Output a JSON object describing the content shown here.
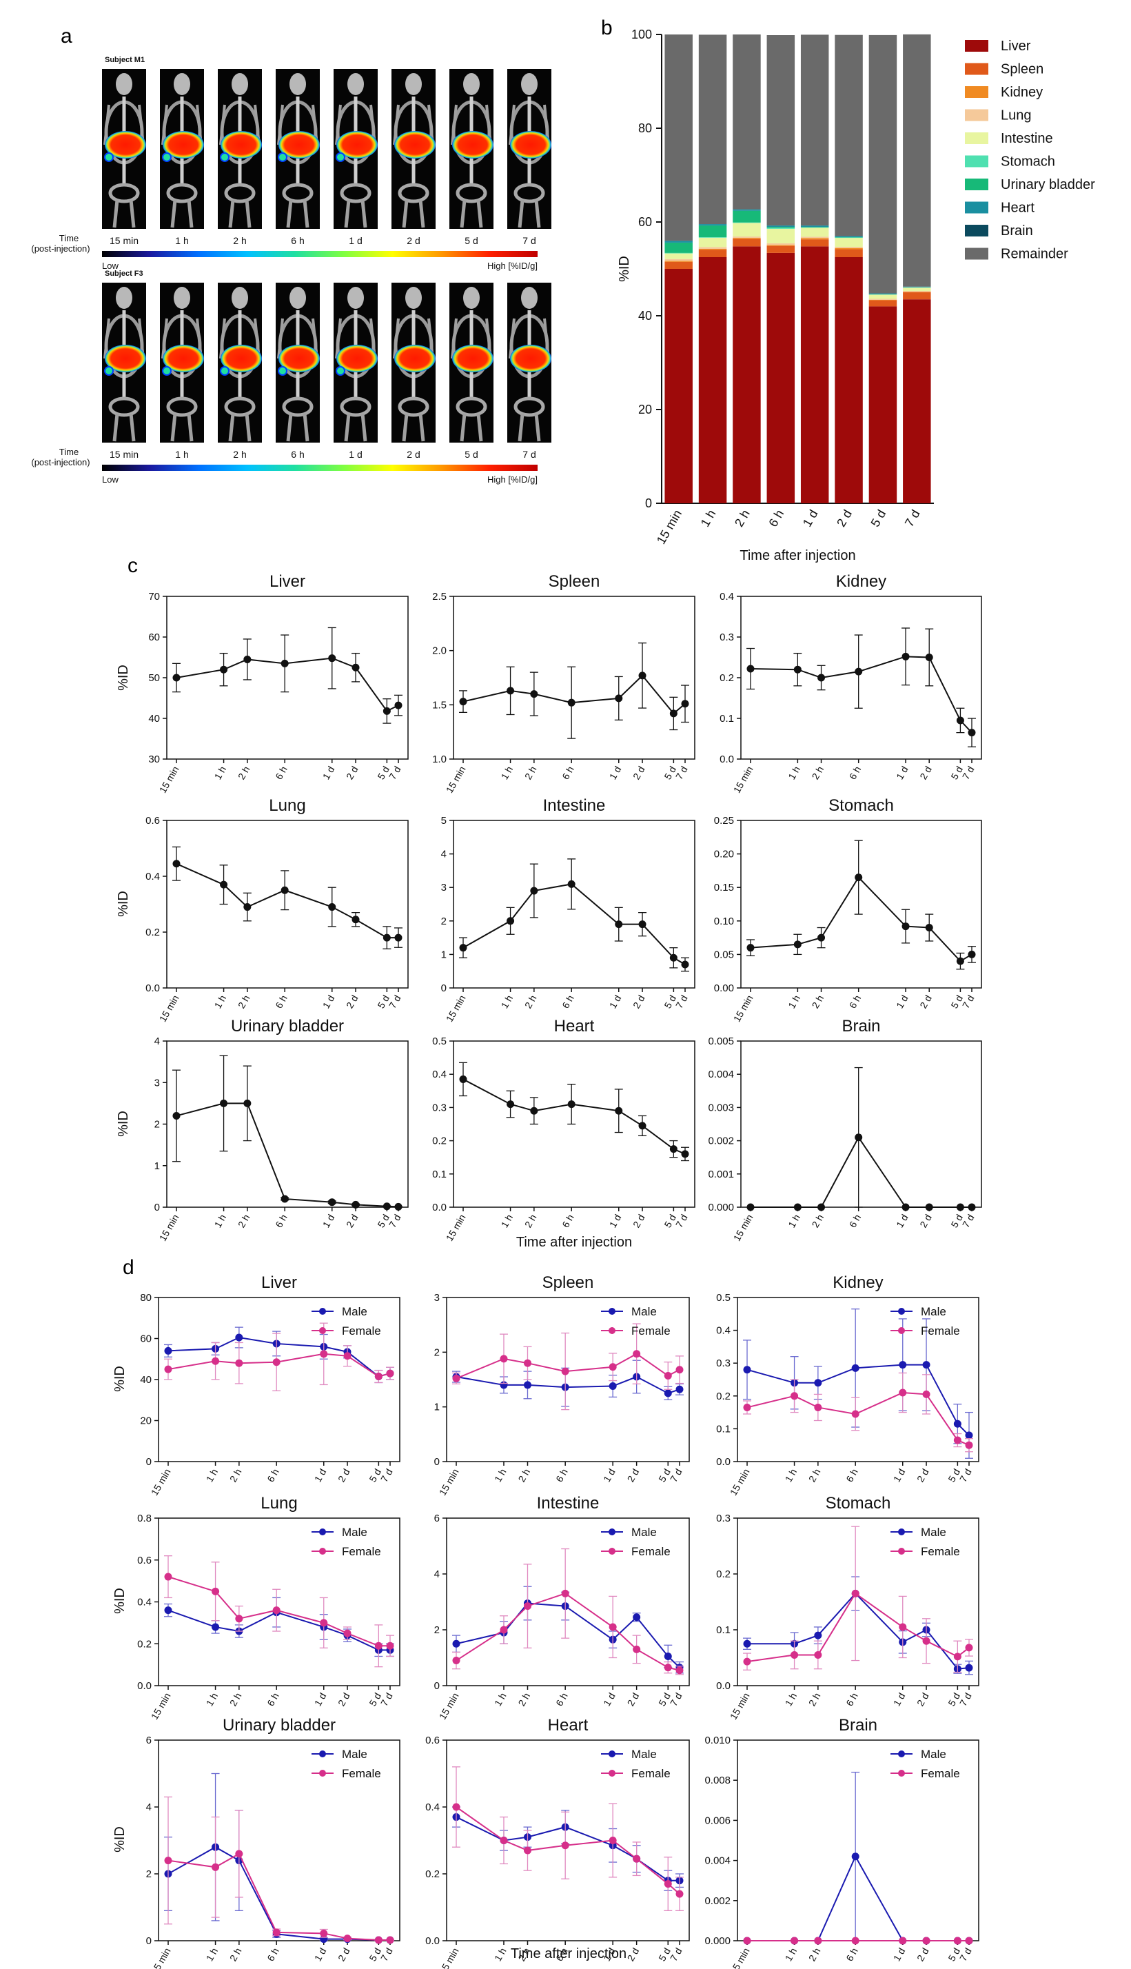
{
  "panel_labels": [
    "a",
    "b",
    "c",
    "d"
  ],
  "panel_a": {
    "colorscale_colors": [
      "#000000",
      "#1a1aa0",
      "#0070ff",
      "#00c0ff",
      "#20e0a0",
      "#80ff40",
      "#ffff00",
      "#ff9900",
      "#ff2000",
      "#c00000"
    ],
    "rows": [
      {
        "subject_label": "Subject M1",
        "time_axis_label": [
          "Time",
          "(post-injection)"
        ],
        "timepoints": [
          "15 min",
          "1 h",
          "2 h",
          "6 h",
          "1 d",
          "2 d",
          "5 d",
          "7 d"
        ],
        "scale_low": "Low",
        "scale_high": "High [%ID/g]"
      },
      {
        "subject_label": "Subject F3",
        "time_axis_label": [
          "Time",
          "(post-injection)"
        ],
        "timepoints": [
          "15 min",
          "1 h",
          "2 h",
          "6 h",
          "1 d",
          "2 d",
          "5 d",
          "7 d"
        ],
        "scale_low": "Low",
        "scale_high": "High [%ID/g]"
      }
    ]
  },
  "chart_data": [
    {
      "panel": "b",
      "type": "bar",
      "stacked": true,
      "categories": [
        "15 min",
        "1 h",
        "2 h",
        "6 h",
        "1 d",
        "2 d",
        "5 d",
        "7 d"
      ],
      "xlabel": "Time after injection",
      "ylabel": "%ID",
      "ylim": [
        0,
        100
      ],
      "yticks": [
        0,
        20,
        40,
        60,
        80,
        100
      ],
      "legend_position": "right",
      "series": [
        {
          "name": "Liver",
          "color": "#9e0a0a",
          "values": [
            50,
            52.5,
            54.8,
            53.4,
            54.8,
            52.5,
            42,
            43.5
          ]
        },
        {
          "name": "Spleen",
          "color": "#e0591a",
          "values": [
            1.5,
            1.6,
            1.6,
            1.5,
            1.5,
            1.7,
            1.3,
            1.5
          ]
        },
        {
          "name": "Kidney",
          "color": "#f08a22",
          "values": [
            0.2,
            0.2,
            0.2,
            0.2,
            0.25,
            0.25,
            0.1,
            0.1
          ]
        },
        {
          "name": "Lung",
          "color": "#f5c99a",
          "values": [
            0.4,
            0.35,
            0.3,
            0.35,
            0.3,
            0.25,
            0.2,
            0.2
          ]
        },
        {
          "name": "Intestine",
          "color": "#e8f5a0",
          "values": [
            1.2,
            2.0,
            2.9,
            3.1,
            1.9,
            1.9,
            0.9,
            0.7
          ]
        },
        {
          "name": "Stomach",
          "color": "#4fe0b0",
          "values": [
            0.1,
            0.1,
            0.1,
            0.2,
            0.1,
            0.1,
            0.05,
            0.05
          ]
        },
        {
          "name": "Urinary bladder",
          "color": "#17b978",
          "values": [
            2.2,
            2.5,
            2.5,
            0.2,
            0.1,
            0.05,
            0.02,
            0.02
          ]
        },
        {
          "name": "Heart",
          "color": "#1a8fa0",
          "values": [
            0.4,
            0.3,
            0.3,
            0.3,
            0.3,
            0.25,
            0.2,
            0.15
          ]
        },
        {
          "name": "Brain",
          "color": "#0b4a5e",
          "values": [
            0,
            0,
            0,
            0.002,
            0,
            0,
            0,
            0
          ]
        },
        {
          "name": "Remainder",
          "color": "#6a6a6a",
          "values": [
            44.0,
            40.4,
            37.3,
            40.6,
            40.7,
            42.9,
            55.1,
            53.8
          ]
        }
      ]
    },
    {
      "panel": "c",
      "type": "line",
      "x_categories": [
        "15 min",
        "1 h",
        "2 h",
        "6 h",
        "1 d",
        "2 d",
        "5 d",
        "7 d"
      ],
      "x_hours": [
        0.25,
        1,
        2,
        6,
        24,
        48,
        120,
        168
      ],
      "xlabel": "Time after injection",
      "ylabel": "%ID",
      "subplots": [
        {
          "title": "Liver",
          "ylim": [
            30,
            70
          ],
          "yticks": [
            30,
            40,
            50,
            60,
            70
          ],
          "values": [
            50,
            52,
            54.5,
            53.5,
            54.8,
            52.5,
            41.8,
            43.2
          ],
          "errors": [
            3.5,
            4,
            5,
            7,
            7.5,
            3.5,
            3,
            2.5
          ]
        },
        {
          "title": "Spleen",
          "ylim": [
            1.0,
            2.5
          ],
          "yticks": [
            "1.0",
            "1.5",
            "2.0",
            "2.5"
          ],
          "values": [
            1.53,
            1.63,
            1.6,
            1.52,
            1.56,
            1.77,
            1.42,
            1.51
          ],
          "errors": [
            0.1,
            0.22,
            0.2,
            0.33,
            0.2,
            0.3,
            0.15,
            0.17
          ]
        },
        {
          "title": "Kidney",
          "ylim": [
            0,
            0.4
          ],
          "yticks": [
            "0.0",
            "0.1",
            "0.2",
            "0.3",
            "0.4"
          ],
          "values": [
            0.222,
            0.22,
            0.2,
            0.215,
            0.252,
            0.25,
            0.095,
            0.065
          ],
          "errors": [
            0.05,
            0.04,
            0.03,
            0.09,
            0.07,
            0.07,
            0.03,
            0.035
          ]
        },
        {
          "title": "Lung",
          "ylim": [
            0,
            0.6
          ],
          "yticks": [
            "0.0",
            "0.2",
            "0.4",
            "0.6"
          ],
          "values": [
            0.445,
            0.37,
            0.29,
            0.35,
            0.29,
            0.245,
            0.18,
            0.18
          ],
          "errors": [
            0.06,
            0.07,
            0.05,
            0.07,
            0.07,
            0.025,
            0.04,
            0.035
          ]
        },
        {
          "title": "Intestine",
          "ylim": [
            0,
            5
          ],
          "yticks": [
            "0",
            "1",
            "2",
            "3",
            "4",
            "5"
          ],
          "values": [
            1.2,
            2.0,
            2.9,
            3.1,
            1.9,
            1.9,
            0.9,
            0.7
          ],
          "errors": [
            0.3,
            0.4,
            0.8,
            0.75,
            0.5,
            0.35,
            0.3,
            0.2
          ]
        },
        {
          "title": "Stomach",
          "ylim": [
            0,
            0.25
          ],
          "yticks": [
            "0.00",
            "0.05",
            "0.10",
            "0.15",
            "0.20",
            "0.25"
          ],
          "values": [
            0.06,
            0.065,
            0.075,
            0.165,
            0.092,
            0.09,
            0.04,
            0.05
          ],
          "errors": [
            0.012,
            0.015,
            0.015,
            0.055,
            0.025,
            0.02,
            0.012,
            0.012
          ]
        },
        {
          "title": "Urinary bladder",
          "ylim": [
            0,
            4
          ],
          "yticks": [
            "0",
            "1",
            "2",
            "3",
            "4"
          ],
          "values": [
            2.2,
            2.5,
            2.5,
            0.2,
            0.12,
            0.06,
            0.02,
            0.01
          ],
          "errors": [
            1.1,
            1.15,
            0.9,
            0.03,
            0.03,
            0.02,
            0.01,
            0.005
          ]
        },
        {
          "title": "Heart",
          "ylim": [
            0,
            0.5
          ],
          "yticks": [
            "0.0",
            "0.1",
            "0.2",
            "0.3",
            "0.4",
            "0.5"
          ],
          "values": [
            0.385,
            0.31,
            0.29,
            0.31,
            0.29,
            0.245,
            0.175,
            0.16
          ],
          "errors": [
            0.05,
            0.04,
            0.04,
            0.06,
            0.065,
            0.03,
            0.025,
            0.02
          ]
        },
        {
          "title": "Brain",
          "ylim": [
            0,
            0.005
          ],
          "yticks": [
            "0.000",
            "0.001",
            "0.002",
            "0.003",
            "0.004",
            "0.005"
          ],
          "values": [
            0,
            0,
            0,
            0.0021,
            0,
            0,
            0,
            0
          ],
          "errors": [
            0,
            0,
            0,
            0.0021,
            0,
            0,
            0,
            0
          ]
        }
      ]
    },
    {
      "panel": "d",
      "type": "line",
      "x_categories": [
        "15 min",
        "1 h",
        "2 h",
        "6 h",
        "1 d",
        "2 d",
        "5 d",
        "7 d"
      ],
      "x_hours": [
        0.25,
        1,
        2,
        6,
        24,
        48,
        120,
        168
      ],
      "xlabel": "Time after injection",
      "ylabel": "%ID",
      "legend_position": "top-right",
      "series_styles": [
        {
          "name": "Male",
          "color": "#1a1ab0"
        },
        {
          "name": "Female",
          "color": "#d62f8a"
        }
      ],
      "subplots": [
        {
          "title": "Liver",
          "ylim": [
            0,
            80
          ],
          "yticks": [
            "0",
            "20",
            "40",
            "60",
            "80"
          ],
          "male": [
            54,
            55,
            60.5,
            57.5,
            56,
            53.5,
            41.5,
            43
          ],
          "male_err": [
            3,
            3,
            5,
            6,
            6,
            3,
            3,
            3
          ],
          "female": [
            45,
            49,
            48,
            48.5,
            52.5,
            51.5,
            41.5,
            43
          ],
          "female_err": [
            5,
            9,
            10,
            14,
            15,
            5,
            3,
            3
          ]
        },
        {
          "title": "Spleen",
          "ylim": [
            0,
            3
          ],
          "yticks": [
            "0",
            "1",
            "2",
            "3"
          ],
          "male": [
            1.55,
            1.4,
            1.4,
            1.36,
            1.38,
            1.55,
            1.25,
            1.32
          ],
          "male_err": [
            0.1,
            0.15,
            0.25,
            0.35,
            0.2,
            0.3,
            0.12,
            0.1
          ],
          "female": [
            1.52,
            1.88,
            1.8,
            1.65,
            1.73,
            1.97,
            1.57,
            1.68
          ],
          "female_err": [
            0.1,
            0.45,
            0.3,
            0.7,
            0.25,
            0.55,
            0.25,
            0.25
          ]
        },
        {
          "title": "Kidney",
          "ylim": [
            0,
            0.5
          ],
          "yticks": [
            "0.0",
            "0.1",
            "0.2",
            "0.3",
            "0.4",
            "0.5"
          ],
          "male": [
            0.28,
            0.24,
            0.24,
            0.285,
            0.295,
            0.295,
            0.115,
            0.08
          ],
          "male_err": [
            0.09,
            0.08,
            0.05,
            0.18,
            0.14,
            0.14,
            0.06,
            0.07
          ],
          "female": [
            0.165,
            0.2,
            0.165,
            0.145,
            0.21,
            0.205,
            0.065,
            0.05
          ],
          "female_err": [
            0.02,
            0.05,
            0.04,
            0.05,
            0.06,
            0.06,
            0.02,
            0.02
          ]
        },
        {
          "title": "Lung",
          "ylim": [
            0,
            0.8
          ],
          "yticks": [
            "0.0",
            "0.2",
            "0.4",
            "0.6",
            "0.8"
          ],
          "male": [
            0.36,
            0.28,
            0.26,
            0.35,
            0.28,
            0.24,
            0.17,
            0.17
          ],
          "male_err": [
            0.03,
            0.03,
            0.03,
            0.07,
            0.06,
            0.03,
            0.03,
            0.03
          ],
          "female": [
            0.52,
            0.45,
            0.32,
            0.36,
            0.3,
            0.25,
            0.19,
            0.19
          ],
          "female_err": [
            0.1,
            0.14,
            0.06,
            0.1,
            0.12,
            0.03,
            0.1,
            0.05
          ]
        },
        {
          "title": "Intestine",
          "ylim": [
            0,
            6
          ],
          "yticks": [
            "0",
            "2",
            "4",
            "6"
          ],
          "male": [
            1.5,
            1.9,
            2.95,
            2.85,
            1.65,
            2.45,
            1.05,
            0.65
          ],
          "male_err": [
            0.3,
            0.4,
            0.6,
            0.5,
            0.3,
            0.15,
            0.4,
            0.2
          ],
          "female": [
            0.9,
            2.0,
            2.85,
            3.3,
            2.1,
            1.3,
            0.65,
            0.55
          ],
          "female_err": [
            0.3,
            0.5,
            1.5,
            1.6,
            1.1,
            0.5,
            0.2,
            0.15
          ]
        },
        {
          "title": "Stomach",
          "ylim": [
            0,
            0.3
          ],
          "yticks": [
            "0.0",
            "0.1",
            "0.2",
            "0.3"
          ],
          "male": [
            0.075,
            0.075,
            0.09,
            0.165,
            0.078,
            0.1,
            0.03,
            0.032
          ],
          "male_err": [
            0.01,
            0.02,
            0.015,
            0.03,
            0.02,
            0.012,
            0.008,
            0.012
          ],
          "female": [
            0.043,
            0.055,
            0.055,
            0.165,
            0.105,
            0.08,
            0.052,
            0.068
          ],
          "female_err": [
            0.015,
            0.025,
            0.025,
            0.12,
            0.055,
            0.04,
            0.028,
            0.015
          ]
        },
        {
          "title": "Urinary bladder",
          "ylim": [
            0,
            6
          ],
          "yticks": [
            "0",
            "2",
            "4",
            "6"
          ],
          "male": [
            2.0,
            2.8,
            2.4,
            0.2,
            0.05,
            0.05,
            0.02,
            0.02
          ],
          "male_err": [
            1.1,
            2.2,
            1.5,
            0.1,
            0.04,
            0.03,
            0.01,
            0.01
          ],
          "female": [
            2.4,
            2.2,
            2.6,
            0.25,
            0.22,
            0.07,
            0.02,
            0.02
          ],
          "female_err": [
            1.9,
            1.5,
            1.3,
            0.1,
            0.12,
            0.04,
            0.01,
            0.01
          ]
        },
        {
          "title": "Heart",
          "ylim": [
            0,
            0.6
          ],
          "yticks": [
            "0.0",
            "0.2",
            "0.4",
            "0.6"
          ],
          "male": [
            0.37,
            0.3,
            0.31,
            0.34,
            0.285,
            0.245,
            0.18,
            0.18
          ],
          "male_err": [
            0.03,
            0.03,
            0.03,
            0.05,
            0.05,
            0.04,
            0.03,
            0.02
          ],
          "female": [
            0.4,
            0.3,
            0.27,
            0.285,
            0.3,
            0.245,
            0.17,
            0.14
          ],
          "female_err": [
            0.12,
            0.07,
            0.06,
            0.1,
            0.11,
            0.05,
            0.08,
            0.05
          ]
        },
        {
          "title": "Brain",
          "ylim": [
            0,
            0.01
          ],
          "yticks": [
            "0.000",
            "0.002",
            "0.004",
            "0.006",
            "0.008",
            "0.010"
          ],
          "male": [
            0,
            0,
            0,
            0.0042,
            0,
            0,
            0,
            0
          ],
          "male_err": [
            0,
            0,
            0,
            0.0042,
            0,
            0,
            0,
            0
          ],
          "female": [
            0,
            0,
            0,
            0,
            0,
            0,
            0,
            0
          ],
          "female_err": [
            0,
            0,
            0,
            0,
            0,
            0,
            0,
            0
          ]
        }
      ]
    }
  ]
}
